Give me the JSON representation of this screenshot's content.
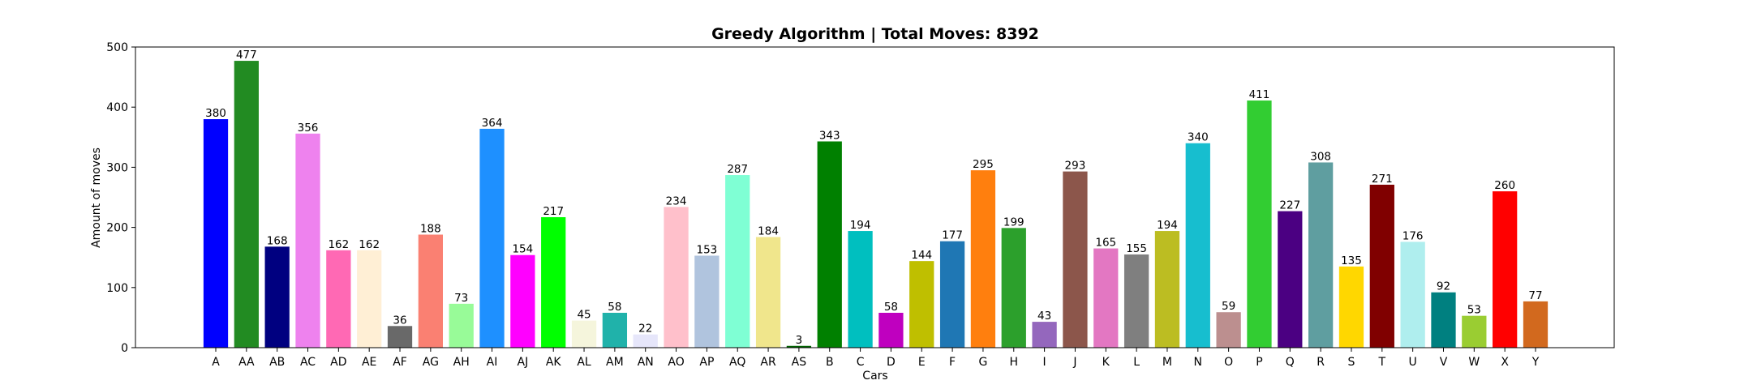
{
  "chart_data": {
    "type": "bar",
    "title": "Greedy Algorithm | Total Moves: 8392",
    "xlabel": "Cars",
    "ylabel": "Amount of moves",
    "ylim": [
      0,
      500
    ],
    "yticks": [
      0,
      100,
      200,
      300,
      400,
      500
    ],
    "grid": false,
    "categories": [
      "A",
      "AA",
      "AB",
      "AC",
      "AD",
      "AE",
      "AF",
      "AG",
      "AH",
      "AI",
      "AJ",
      "AK",
      "AL",
      "AM",
      "AN",
      "AO",
      "AP",
      "AQ",
      "AR",
      "AS",
      "B",
      "C",
      "D",
      "E",
      "F",
      "G",
      "H",
      "I",
      "J",
      "K",
      "L",
      "M",
      "N",
      "O",
      "P",
      "Q",
      "R",
      "S",
      "T",
      "U",
      "V",
      "W",
      "X",
      "Y"
    ],
    "values": [
      380,
      477,
      168,
      356,
      162,
      162,
      36,
      188,
      73,
      364,
      154,
      217,
      45,
      58,
      22,
      234,
      153,
      287,
      184,
      3,
      343,
      194,
      58,
      144,
      177,
      295,
      199,
      43,
      293,
      165,
      155,
      194,
      340,
      59,
      411,
      227,
      308,
      135,
      271,
      176,
      92,
      53,
      260,
      77
    ],
    "colors": [
      "#0000ff",
      "#228b22",
      "#000080",
      "#ee82ee",
      "#ff69b4",
      "#ffefd5",
      "#696969",
      "#fa8072",
      "#98fb98",
      "#1e90ff",
      "#ff00ff",
      "#00ff00",
      "#f5f5dc",
      "#20b2aa",
      "#e6e6fa",
      "#ffc0cb",
      "#b0c4de",
      "#7fffd4",
      "#f0e68c",
      "#006400",
      "#008000",
      "#00bfbf",
      "#bf00bf",
      "#bfbf00",
      "#1f77b4",
      "#ff7f0e",
      "#2ca02c",
      "#9467bd",
      "#8c564b",
      "#e377c2",
      "#7f7f7f",
      "#bcbd22",
      "#17becf",
      "#bc8f8f",
      "#32cd32",
      "#4b0082",
      "#5f9ea0",
      "#ffd700",
      "#800000",
      "#afeeee",
      "#008080",
      "#9acd32",
      "#ff0000",
      "#d2691e"
    ]
  }
}
